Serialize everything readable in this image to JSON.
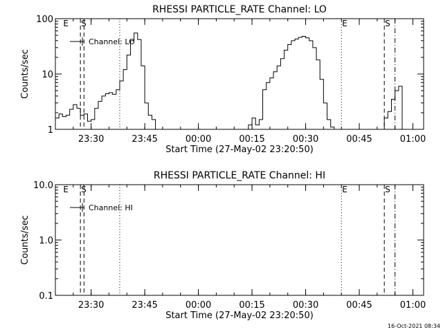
{
  "timestamp": "16-Oct-2021 08:34",
  "chart_data": [
    {
      "type": "line",
      "title": "RHESSI PARTICLE_RATE Channel: LO",
      "xlabel": "Start Time (27-May-02 23:20:50)",
      "ylabel": "Counts/sec",
      "yscale": "log",
      "ylim": [
        1,
        100
      ],
      "y_ticks": [
        1,
        10,
        100
      ],
      "y_tick_labels": [
        "1",
        "10",
        "100"
      ],
      "x_ticks": [
        "23:30",
        "23:45",
        "00:00",
        "00:15",
        "00:30",
        "00:45",
        "01:00"
      ],
      "legend": "Channel: LO",
      "markers": [
        {
          "label": "E",
          "t": "23:22",
          "style": "none"
        },
        {
          "label": "S",
          "t": "23:27",
          "style": "dashed"
        },
        {
          "label": "",
          "t": "23:28",
          "style": "dashed"
        },
        {
          "label": "",
          "t": "23:38",
          "style": "dotted"
        },
        {
          "label": "E",
          "t": "00:40",
          "style": "dotted"
        },
        {
          "label": "S",
          "t": "00:52",
          "style": "dashed"
        },
        {
          "label": "",
          "t": "00:55",
          "style": "dashdot"
        }
      ],
      "series": [
        {
          "x": [
            "23:20",
            "23:21",
            "23:22",
            "23:23",
            "23:24",
            "23:25",
            "23:26",
            "23:27",
            "23:28",
            "23:29",
            "23:30",
            "23:31",
            "23:32",
            "23:33",
            "23:34",
            "23:35",
            "23:36",
            "23:37",
            "23:38",
            "23:39",
            "23:40",
            "23:41",
            "23:42",
            "23:43",
            "23:44",
            "23:45",
            "23:46",
            "23:47",
            "00:14",
            "00:15",
            "00:16",
            "00:17",
            "00:18",
            "00:19",
            "00:20",
            "00:21",
            "00:22",
            "00:23",
            "00:24",
            "00:25",
            "00:26",
            "00:27",
            "00:28",
            "00:29",
            "00:30",
            "00:31",
            "00:32",
            "00:33",
            "00:34",
            "00:35",
            "00:36",
            "00:37",
            "00:52",
            "00:53",
            "00:54",
            "00:55",
            "00:56"
          ],
          "values": [
            1.6,
            1.9,
            1.7,
            1.8,
            2.3,
            2.8,
            2.4,
            1.8,
            1.9,
            1.4,
            1.5,
            2.4,
            3.2,
            4.0,
            4.4,
            4.6,
            4.3,
            5.2,
            7.5,
            12,
            22,
            40,
            55,
            42,
            14,
            3.0,
            1.8,
            1.5,
            1.2,
            1.6,
            1.2,
            1.5,
            5.2,
            7.0,
            8.5,
            11,
            14,
            19,
            27,
            34,
            40,
            43,
            46,
            48,
            45,
            40,
            30,
            18,
            8,
            3,
            1.5,
            1.1,
            1.6,
            2.1,
            3.5,
            5.0,
            6.0
          ]
        }
      ]
    },
    {
      "type": "line",
      "title": "RHESSI PARTICLE_RATE Channel: HI",
      "xlabel": "Start Time (27-May-02 23:20:50)",
      "ylabel": "Counts/sec",
      "yscale": "log",
      "ylim": [
        0.1,
        10
      ],
      "y_ticks": [
        0.1,
        1,
        10
      ],
      "y_tick_labels": [
        "0.1",
        "1.0",
        "10.0"
      ],
      "x_ticks": [
        "23:30",
        "23:45",
        "00:00",
        "00:15",
        "00:30",
        "00:45",
        "01:00"
      ],
      "legend": "Channel: HI",
      "markers": [
        {
          "label": "E",
          "t": "23:22",
          "style": "none"
        },
        {
          "label": "S",
          "t": "23:27",
          "style": "dashed"
        },
        {
          "label": "",
          "t": "23:28",
          "style": "dashed"
        },
        {
          "label": "",
          "t": "23:38",
          "style": "dotted"
        },
        {
          "label": "E",
          "t": "00:40",
          "style": "dotted"
        },
        {
          "label": "S",
          "t": "00:52",
          "style": "dashed"
        },
        {
          "label": "",
          "t": "00:55",
          "style": "dashdot"
        }
      ],
      "series": []
    }
  ]
}
